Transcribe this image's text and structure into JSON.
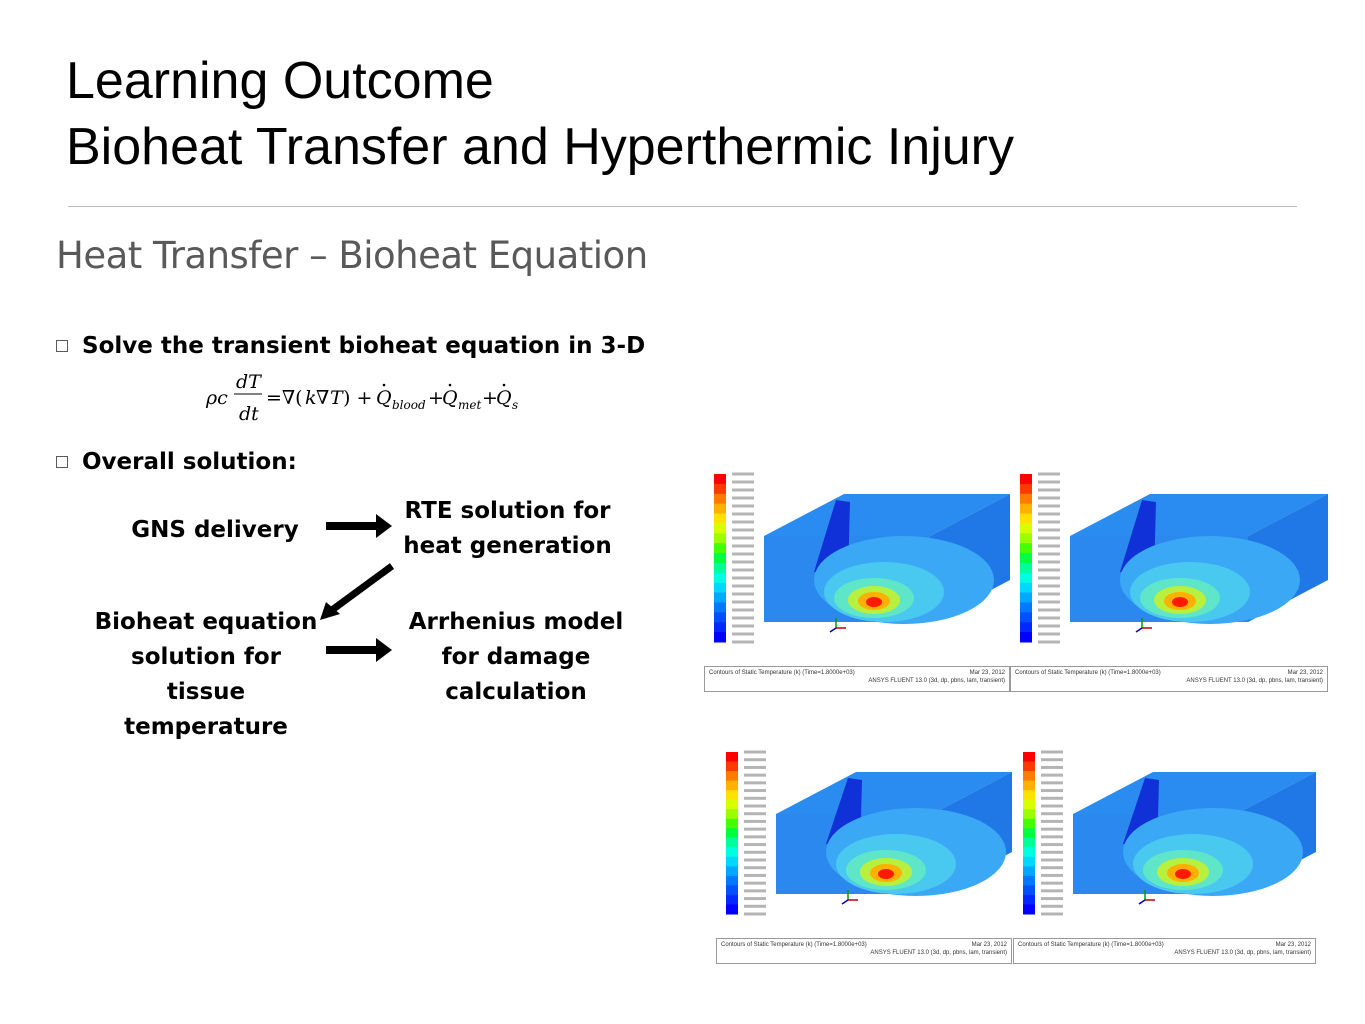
{
  "slide": {
    "title_line1": "Learning Outcome",
    "title_line2": "Bioheat Transfer and Hyperthermic Injury",
    "subtitle": "Heat Transfer – Bioheat Equation"
  },
  "bullets": [
    {
      "text": "Solve the transient bioheat equation in 3-D"
    },
    {
      "text": "Overall solution:"
    }
  ],
  "flow": {
    "gns": "GNS delivery",
    "rte_line1": "RTE solution for",
    "rte_line2": "heat generation",
    "bioheat_line1": "Bioheat equation",
    "bioheat_line2": "solution for tissue",
    "bioheat_line3": "temperature",
    "arr_line1": "Arrhenius model",
    "arr_line2": "for damage",
    "arr_line3": "calculation"
  },
  "panels": [
    {
      "caption_left": "Contours of Static Temperature (k)  (Time=1.8000e+03)",
      "caption_date": "Mar 23, 2012",
      "caption_sw": "ANSYS FLUENT 13.0 (3d, dp, pbns, lam, transient)"
    },
    {
      "caption_left": "Contours of Static Temperature (k)  (Time=1.8000e+03)",
      "caption_date": "Mar 23, 2012",
      "caption_sw": "ANSYS FLUENT 13.0 (3d, dp, pbns, lam, transient)"
    },
    {
      "caption_left": "Contours of Static Temperature (k)  (Time=1.8000e+03)",
      "caption_date": "Mar 23, 2012",
      "caption_sw": "ANSYS FLUENT 13.0 (3d, dp, pbns, lam, transient)"
    },
    {
      "caption_left": "Contours of Static Temperature (k)  (Time=1.8000e+03)",
      "caption_date": "Mar 23, 2012",
      "caption_sw": "ANSYS FLUENT 13.0 (3d, dp, pbns, lam, transient)"
    }
  ],
  "colors": {
    "subtitle": "#595959",
    "rule": "#bdbdbd"
  }
}
